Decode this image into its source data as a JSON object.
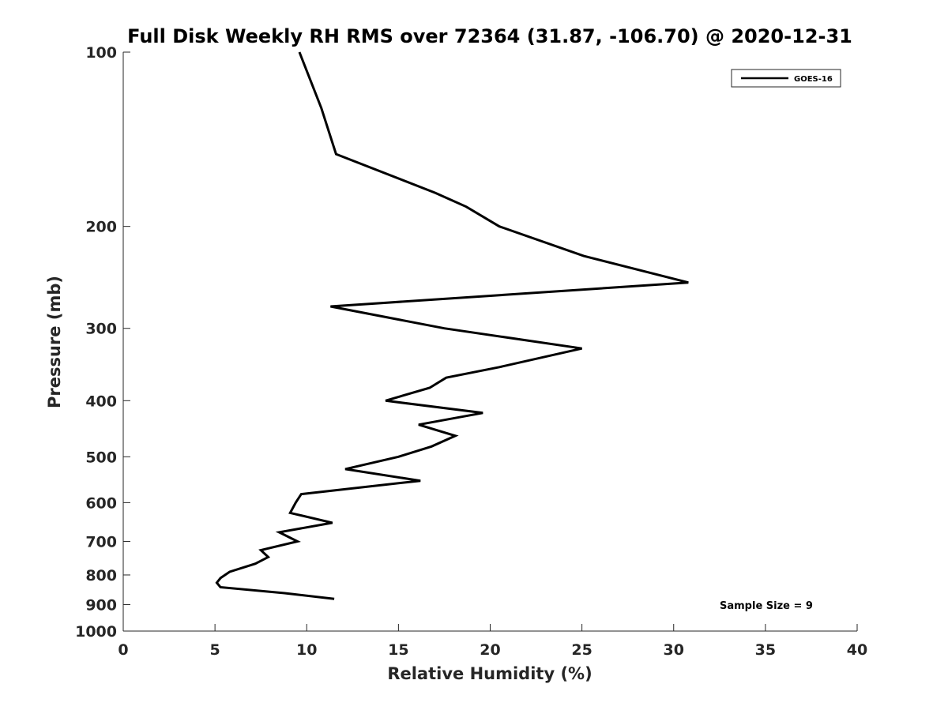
{
  "chart_data": {
    "type": "line",
    "title": "Full Disk Weekly RH RMS over 72364 (31.87, -106.70) @ 2020-12-31",
    "xlabel": "Relative Humidity (%)",
    "ylabel": "Pressure (mb)",
    "xlim": [
      0,
      40
    ],
    "ylim": [
      100,
      1000
    ],
    "y_scale": "log",
    "y_reversed": true,
    "grid": false,
    "legend_position": "top-right",
    "x_ticks": [
      0,
      5,
      10,
      15,
      20,
      25,
      30,
      35,
      40
    ],
    "y_ticks": [
      100,
      200,
      300,
      400,
      500,
      600,
      700,
      800,
      900,
      1000
    ],
    "series": [
      {
        "name": "GOES-16",
        "color": "#000000",
        "points": [
          {
            "x": 9.6,
            "p": 100
          },
          {
            "x": 10.8,
            "p": 125
          },
          {
            "x": 11.6,
            "p": 150
          },
          {
            "x": 17.0,
            "p": 175
          },
          {
            "x": 18.7,
            "p": 185
          },
          {
            "x": 20.5,
            "p": 200
          },
          {
            "x": 25.1,
            "p": 225
          },
          {
            "x": 30.8,
            "p": 250
          },
          {
            "x": 11.3,
            "p": 275
          },
          {
            "x": 17.5,
            "p": 300
          },
          {
            "x": 25.0,
            "p": 325
          },
          {
            "x": 20.5,
            "p": 350
          },
          {
            "x": 17.6,
            "p": 365
          },
          {
            "x": 16.7,
            "p": 380
          },
          {
            "x": 14.3,
            "p": 400
          },
          {
            "x": 19.6,
            "p": 420
          },
          {
            "x": 16.1,
            "p": 440
          },
          {
            "x": 18.1,
            "p": 460
          },
          {
            "x": 16.8,
            "p": 480
          },
          {
            "x": 15.0,
            "p": 500
          },
          {
            "x": 12.1,
            "p": 525
          },
          {
            "x": 16.2,
            "p": 550
          },
          {
            "x": 9.7,
            "p": 580
          },
          {
            "x": 9.4,
            "p": 600
          },
          {
            "x": 9.1,
            "p": 625
          },
          {
            "x": 11.4,
            "p": 650
          },
          {
            "x": 8.5,
            "p": 675
          },
          {
            "x": 9.5,
            "p": 700
          },
          {
            "x": 7.5,
            "p": 725
          },
          {
            "x": 7.9,
            "p": 745
          },
          {
            "x": 7.2,
            "p": 765
          },
          {
            "x": 5.8,
            "p": 790
          },
          {
            "x": 5.3,
            "p": 810
          },
          {
            "x": 5.1,
            "p": 825
          },
          {
            "x": 5.3,
            "p": 840
          },
          {
            "x": 8.8,
            "p": 860
          },
          {
            "x": 11.5,
            "p": 880
          }
        ]
      }
    ],
    "annotations": [
      {
        "text": "Sample Size = 9",
        "position": "bottom-right"
      }
    ]
  }
}
